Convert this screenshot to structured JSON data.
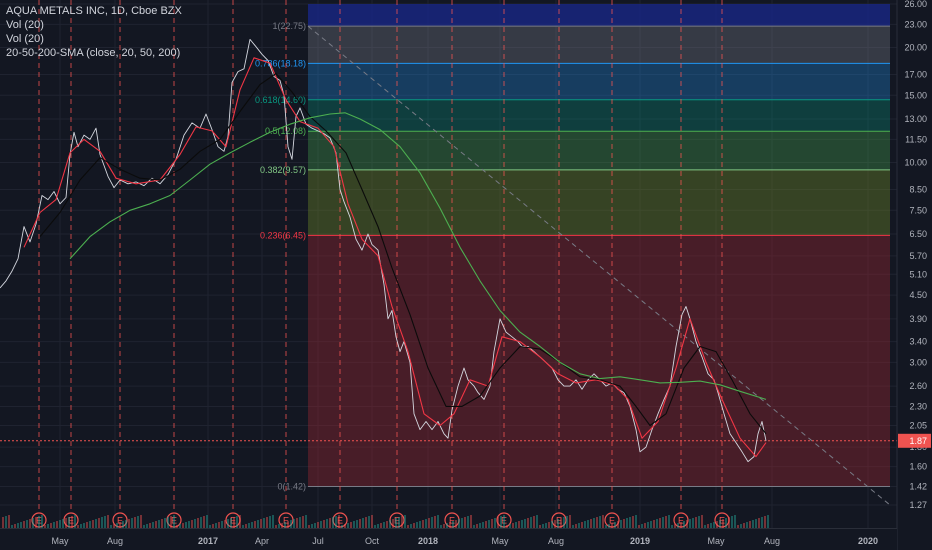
{
  "legend": {
    "symbol_line": "AQUA METALS INC, 1D, Cboe BZX",
    "vol_line_1": "Vol (20)",
    "vol_line_2": "Vol (20)",
    "sma_line": "20-50-200-SMA (close, 20, 50, 200)"
  },
  "colors": {
    "background": "#131722",
    "axis_text": "#b2b5be",
    "sma_fast": "#f23645",
    "sma_mid": "#000000",
    "sma_slow": "#4caf50",
    "earnings_line": "#ef5350",
    "price_line": "#ef5350"
  },
  "chart_data": {
    "type": "line",
    "y_scale": "log",
    "ylim": [
      1.27,
      26.0
    ],
    "y_ticks": [
      "26.00",
      "23.00",
      "20.00",
      "17.00",
      "15.00",
      "13.00",
      "11.50",
      "10.00",
      "8.50",
      "7.50",
      "6.50",
      "5.70",
      "5.10",
      "4.50",
      "3.90",
      "3.40",
      "3.00",
      "2.60",
      "2.30",
      "2.05",
      "1.80",
      "1.60",
      "1.42",
      "1.27"
    ],
    "x_labels": [
      "May",
      "Aug",
      "2017",
      "Apr",
      "Jul",
      "Oct",
      "2018",
      "May",
      "Aug",
      "2019",
      "May",
      "Aug",
      "2020"
    ],
    "current_price_label": "1.87",
    "fib_levels": [
      {
        "label": "1(22.75)",
        "value": 22.75,
        "color": "#787b86"
      },
      {
        "label": "0.786(18.18)",
        "value": 18.18,
        "color": "#2196f3"
      },
      {
        "label": "0.618(14.60)",
        "value": 14.6,
        "color": "#089981"
      },
      {
        "label": "0.5(12.08)",
        "value": 12.08,
        "color": "#4caf50"
      },
      {
        "label": "0.382(9.57)",
        "value": 9.57,
        "color": "#81c784"
      },
      {
        "label": "0.236(6.45)",
        "value": 6.45,
        "color": "#f23645"
      },
      {
        "label": "0(1.42)",
        "value": 1.42,
        "color": "#787b86"
      }
    ],
    "earnings_marker": "E",
    "earnings_count": 14,
    "series": [
      {
        "type": "price",
        "points": [
          [
            0,
            4.7
          ],
          [
            6,
            4.9
          ],
          [
            12,
            5.2
          ],
          [
            18,
            5.6
          ],
          [
            24,
            6.8
          ],
          [
            30,
            6.2
          ],
          [
            36,
            6.9
          ],
          [
            42,
            8.2
          ],
          [
            48,
            8.0
          ],
          [
            54,
            8.4
          ],
          [
            60,
            7.8
          ],
          [
            66,
            8.1
          ],
          [
            70,
            10.5
          ],
          [
            74,
            12.0
          ],
          [
            78,
            11.0
          ],
          [
            84,
            11.8
          ],
          [
            90,
            11.5
          ],
          [
            96,
            12.3
          ],
          [
            100,
            10.5
          ],
          [
            108,
            9.2
          ],
          [
            114,
            8.6
          ],
          [
            120,
            9.0
          ],
          [
            128,
            8.8
          ],
          [
            136,
            8.9
          ],
          [
            144,
            8.7
          ],
          [
            152,
            9.1
          ],
          [
            160,
            8.8
          ],
          [
            168,
            9.3
          ],
          [
            176,
            10.2
          ],
          [
            184,
            11.8
          ],
          [
            192,
            12.7
          ],
          [
            200,
            12.3
          ],
          [
            206,
            13.4
          ],
          [
            212,
            12.2
          ],
          [
            218,
            11.0
          ],
          [
            224,
            10.7
          ],
          [
            228,
            11.7
          ],
          [
            232,
            16.2
          ],
          [
            238,
            17.3
          ],
          [
            244,
            17.6
          ],
          [
            250,
            21.0
          ],
          [
            256,
            20.1
          ],
          [
            262,
            19.2
          ],
          [
            268,
            18.5
          ],
          [
            274,
            16.8
          ],
          [
            280,
            16.4
          ],
          [
            284,
            15.0
          ],
          [
            288,
            11.0
          ],
          [
            292,
            10.2
          ],
          [
            296,
            13.2
          ],
          [
            300,
            13.9
          ],
          [
            306,
            12.6
          ],
          [
            312,
            12.3
          ],
          [
            318,
            12.1
          ],
          [
            324,
            11.9
          ],
          [
            330,
            11.6
          ],
          [
            336,
            10.6
          ],
          [
            340,
            8.5
          ],
          [
            344,
            7.9
          ],
          [
            350,
            7.2
          ],
          [
            356,
            6.3
          ],
          [
            362,
            5.9
          ],
          [
            368,
            6.5
          ],
          [
            372,
            6.1
          ],
          [
            378,
            5.9
          ],
          [
            384,
            4.8
          ],
          [
            388,
            3.9
          ],
          [
            392,
            4.1
          ],
          [
            396,
            3.5
          ],
          [
            400,
            3.2
          ],
          [
            404,
            3.4
          ],
          [
            410,
            3.0
          ],
          [
            414,
            2.2
          ],
          [
            420,
            2.0
          ],
          [
            426,
            2.1
          ],
          [
            432,
            2.0
          ],
          [
            438,
            2.1
          ],
          [
            444,
            1.95
          ],
          [
            448,
            1.9
          ],
          [
            452,
            2.25
          ],
          [
            458,
            2.6
          ],
          [
            464,
            2.9
          ],
          [
            468,
            2.7
          ],
          [
            474,
            2.6
          ],
          [
            478,
            2.5
          ],
          [
            484,
            2.4
          ],
          [
            490,
            2.6
          ],
          [
            494,
            3.2
          ],
          [
            500,
            3.9
          ],
          [
            506,
            3.6
          ],
          [
            512,
            3.5
          ],
          [
            518,
            3.4
          ],
          [
            522,
            3.3
          ],
          [
            528,
            3.3
          ],
          [
            534,
            3.2
          ],
          [
            540,
            3.1
          ],
          [
            546,
            3.0
          ],
          [
            552,
            2.9
          ],
          [
            558,
            2.7
          ],
          [
            564,
            2.6
          ],
          [
            570,
            2.6
          ],
          [
            576,
            2.7
          ],
          [
            582,
            2.55
          ],
          [
            588,
            2.7
          ],
          [
            594,
            2.8
          ],
          [
            600,
            2.7
          ],
          [
            606,
            2.6
          ],
          [
            612,
            2.65
          ],
          [
            618,
            2.55
          ],
          [
            624,
            2.5
          ],
          [
            630,
            2.3
          ],
          [
            636,
            2.0
          ],
          [
            640,
            1.75
          ],
          [
            646,
            1.8
          ],
          [
            652,
            2.0
          ],
          [
            658,
            2.2
          ],
          [
            664,
            2.4
          ],
          [
            670,
            2.6
          ],
          [
            676,
            3.3
          ],
          [
            682,
            4.0
          ],
          [
            686,
            4.2
          ],
          [
            690,
            3.9
          ],
          [
            696,
            3.4
          ],
          [
            702,
            3.1
          ],
          [
            708,
            2.8
          ],
          [
            714,
            2.7
          ],
          [
            718,
            2.5
          ],
          [
            724,
            2.2
          ],
          [
            730,
            1.95
          ],
          [
            736,
            1.85
          ],
          [
            742,
            1.75
          ],
          [
            748,
            1.65
          ],
          [
            754,
            1.7
          ],
          [
            758,
            1.95
          ],
          [
            762,
            2.1
          ],
          [
            766,
            1.87
          ]
        ]
      },
      {
        "name": "",
        "type": "sma_fast",
        "color": "#f23645",
        "points": [
          [
            24,
            6.0
          ],
          [
            40,
            7.4
          ],
          [
            56,
            8.0
          ],
          [
            70,
            10.6
          ],
          [
            84,
            11.5
          ],
          [
            100,
            10.7
          ],
          [
            116,
            9.1
          ],
          [
            136,
            8.8
          ],
          [
            160,
            9.0
          ],
          [
            180,
            10.5
          ],
          [
            196,
            12.4
          ],
          [
            212,
            12.1
          ],
          [
            226,
            11.0
          ],
          [
            240,
            15.5
          ],
          [
            254,
            18.8
          ],
          [
            270,
            18.2
          ],
          [
            286,
            14.6
          ],
          [
            300,
            12.8
          ],
          [
            318,
            12.3
          ],
          [
            334,
            11.0
          ],
          [
            348,
            7.8
          ],
          [
            362,
            6.3
          ],
          [
            378,
            5.7
          ],
          [
            392,
            4.2
          ],
          [
            408,
            3.2
          ],
          [
            424,
            2.2
          ],
          [
            440,
            2.05
          ],
          [
            454,
            2.2
          ],
          [
            470,
            2.7
          ],
          [
            488,
            2.6
          ],
          [
            502,
            3.5
          ],
          [
            520,
            3.4
          ],
          [
            540,
            3.1
          ],
          [
            558,
            2.8
          ],
          [
            576,
            2.65
          ],
          [
            596,
            2.7
          ],
          [
            614,
            2.62
          ],
          [
            628,
            2.4
          ],
          [
            642,
            1.9
          ],
          [
            658,
            2.1
          ],
          [
            676,
            2.9
          ],
          [
            690,
            3.9
          ],
          [
            706,
            3.0
          ],
          [
            722,
            2.4
          ],
          [
            740,
            1.9
          ],
          [
            756,
            1.7
          ],
          [
            766,
            1.85
          ]
        ]
      },
      {
        "name": "",
        "type": "sma_mid",
        "color": "#000000",
        "points": [
          [
            40,
            6.4
          ],
          [
            60,
            7.4
          ],
          [
            80,
            9.0
          ],
          [
            100,
            10.3
          ],
          [
            120,
            9.6
          ],
          [
            140,
            9.1
          ],
          [
            160,
            9.0
          ],
          [
            180,
            9.6
          ],
          [
            200,
            10.7
          ],
          [
            220,
            11.5
          ],
          [
            240,
            13.6
          ],
          [
            260,
            16.0
          ],
          [
            276,
            17.1
          ],
          [
            292,
            15.3
          ],
          [
            310,
            13.2
          ],
          [
            326,
            12.1
          ],
          [
            346,
            10.6
          ],
          [
            362,
            8.5
          ],
          [
            378,
            6.8
          ],
          [
            392,
            5.3
          ],
          [
            410,
            4.0
          ],
          [
            428,
            2.9
          ],
          [
            446,
            2.3
          ],
          [
            462,
            2.3
          ],
          [
            480,
            2.45
          ],
          [
            500,
            2.9
          ],
          [
            520,
            3.3
          ],
          [
            540,
            3.25
          ],
          [
            560,
            3.0
          ],
          [
            580,
            2.75
          ],
          [
            600,
            2.7
          ],
          [
            620,
            2.6
          ],
          [
            636,
            2.3
          ],
          [
            650,
            2.05
          ],
          [
            666,
            2.2
          ],
          [
            684,
            2.9
          ],
          [
            700,
            3.3
          ],
          [
            716,
            3.2
          ],
          [
            732,
            2.7
          ],
          [
            750,
            2.2
          ],
          [
            766,
            1.95
          ]
        ]
      },
      {
        "name": "",
        "type": "sma_slow",
        "color": "#4caf50",
        "points": [
          [
            70,
            5.6
          ],
          [
            90,
            6.4
          ],
          [
            110,
            7.0
          ],
          [
            130,
            7.5
          ],
          [
            150,
            7.8
          ],
          [
            170,
            8.2
          ],
          [
            190,
            9.0
          ],
          [
            210,
            9.9
          ],
          [
            230,
            10.6
          ],
          [
            250,
            11.3
          ],
          [
            270,
            12.0
          ],
          [
            290,
            12.6
          ],
          [
            310,
            13.1
          ],
          [
            330,
            13.4
          ],
          [
            345,
            13.5
          ],
          [
            360,
            13.0
          ],
          [
            380,
            12.2
          ],
          [
            400,
            11.0
          ],
          [
            420,
            9.4
          ],
          [
            440,
            7.6
          ],
          [
            460,
            6.0
          ],
          [
            480,
            4.9
          ],
          [
            500,
            4.1
          ],
          [
            520,
            3.6
          ],
          [
            540,
            3.3
          ],
          [
            560,
            3.0
          ],
          [
            580,
            2.8
          ],
          [
            600,
            2.72
          ],
          [
            620,
            2.75
          ],
          [
            640,
            2.7
          ],
          [
            660,
            2.65
          ],
          [
            680,
            2.66
          ],
          [
            700,
            2.68
          ],
          [
            720,
            2.62
          ],
          [
            740,
            2.52
          ],
          [
            766,
            2.4
          ]
        ]
      }
    ]
  }
}
